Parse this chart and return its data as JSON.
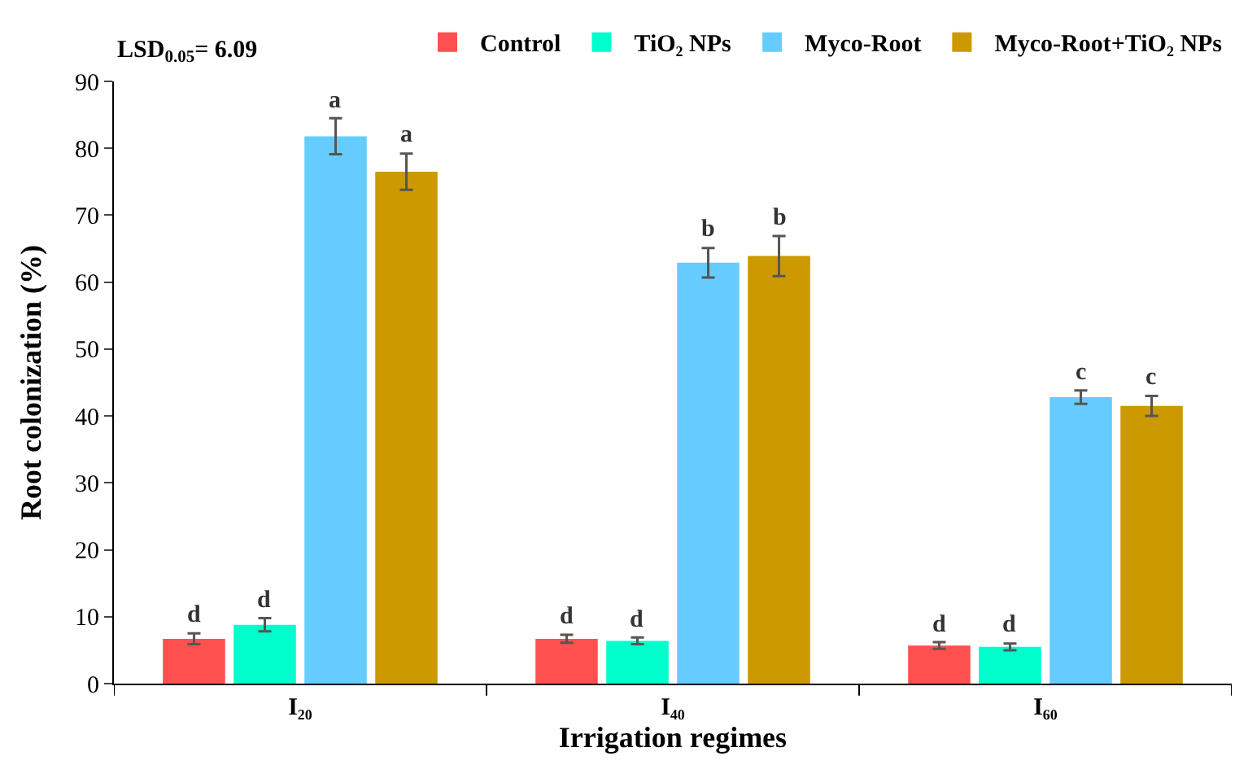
{
  "chart_data": {
    "type": "bar",
    "xlabel": "Irrigation regimes",
    "ylabel": "Root colonization (%)",
    "annotations": [
      "LSD$_{0.05}$= 6.09"
    ],
    "categories": [
      "I₂₀",
      "I₄₀",
      "I₆₀"
    ],
    "ylim": [
      0,
      90
    ],
    "yticks": [
      0,
      10,
      20,
      30,
      40,
      50,
      60,
      70,
      80,
      90
    ],
    "legend": "top",
    "series": [
      {
        "name": "Control",
        "color": "#ff5050",
        "values": [
          6.7,
          6.7,
          5.7
        ],
        "errors": [
          0.8,
          0.6,
          0.5
        ],
        "value_labels": [
          "d",
          "d",
          "d"
        ]
      },
      {
        "name": "TiO₂ NPs",
        "color": "#00ffcc",
        "values": [
          8.8,
          6.4,
          5.5
        ],
        "errors": [
          1.0,
          0.5,
          0.5
        ],
        "value_labels": [
          "d",
          "d",
          "d"
        ]
      },
      {
        "name": "Myco-Root",
        "color": "#66ccff",
        "values": [
          81.8,
          62.9,
          42.8
        ],
        "errors": [
          2.7,
          2.2,
          1.0
        ],
        "value_labels": [
          "a",
          "b",
          "c"
        ]
      },
      {
        "name": "Myco-Root+TiO₂ NPs",
        "color": "#cc9900",
        "values": [
          76.5,
          63.9,
          41.5
        ],
        "errors": [
          2.7,
          3.0,
          1.5
        ],
        "value_labels": [
          "a",
          "b",
          "c"
        ]
      }
    ]
  }
}
